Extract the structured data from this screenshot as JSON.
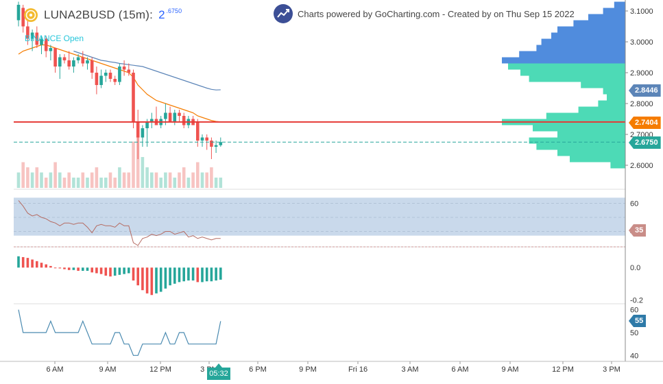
{
  "header": {
    "symbol_label": "LUNA2BUSD (15m):",
    "price_main": "2",
    "price_sup": ".6750",
    "brand_text": "Charts powered by GoCharting.com - Created by  on Thu Sep 15 2022",
    "exchange_note": "BINANCE Open"
  },
  "icons": {
    "coin": "coin-logo-icon",
    "brand": "gocharting-logo-icon"
  },
  "colors": {
    "up": "#26a69a",
    "down": "#ef5350",
    "price_line": "#e53935",
    "ma_fast": "#f57c00",
    "ma_slow": "#5c85b8",
    "vp_up": "#3ad6ae",
    "vp_down": "#3d7fd9",
    "rsi_band": "#c6d7ea",
    "rsi_line": "#b56b62",
    "cci_line": "#4a8ab0"
  },
  "badges": {
    "ma_slow": {
      "text": "2.8446",
      "color": "#5c85b8"
    },
    "ma_fast": {
      "text": "2.7404",
      "color": "#f57c00"
    },
    "last_price": {
      "text": "2.6750",
      "color": "#26a69a"
    },
    "rsi": {
      "text": "35",
      "color": "#c98d88"
    },
    "cci": {
      "text": "55",
      "color": "#2e7aa8"
    },
    "time": {
      "text": "05:32"
    }
  },
  "x_axis": {
    "labels": [
      "6 AM",
      "9 AM",
      "12 PM",
      "3 PM",
      "6 PM",
      "9 PM",
      "Fri 16",
      "3 AM",
      "6 AM",
      "9 AM",
      "12 PM",
      "3 PM"
    ]
  },
  "panes": {
    "price": {
      "ticks": [
        "3.1000",
        "3.0000",
        "2.9000",
        "2.8000",
        "2.7000",
        "2.6000"
      ]
    },
    "rsi": {
      "ticks": [
        "60",
        "40"
      ]
    },
    "macd": {
      "ticks": [
        "0.0",
        "-0.2"
      ]
    },
    "cci": {
      "ticks": [
        "60",
        "50",
        "40"
      ]
    }
  },
  "chart_data": {
    "type": "candlestick",
    "symbol": "LUNA2BUSD",
    "interval": "15m",
    "last_price": 2.675,
    "price_line": 2.7404,
    "ylim": [
      2.58,
      3.13
    ],
    "candles": [
      [
        3.07,
        3.13,
        3.05,
        3.12
      ],
      [
        3.11,
        3.12,
        3.03,
        3.05
      ],
      [
        3.05,
        3.07,
        2.99,
        3.01
      ],
      [
        3.01,
        3.04,
        2.97,
        3.03
      ],
      [
        3.03,
        3.05,
        2.98,
        2.99
      ],
      [
        2.99,
        3.02,
        2.96,
        3.01
      ],
      [
        3.01,
        3.02,
        2.95,
        2.97
      ],
      [
        2.97,
        2.99,
        2.94,
        2.98
      ],
      [
        2.98,
        2.98,
        2.9,
        2.92
      ],
      [
        2.92,
        2.96,
        2.88,
        2.95
      ],
      [
        2.95,
        2.96,
        2.93,
        2.94
      ],
      [
        2.94,
        2.97,
        2.91,
        2.92
      ],
      [
        2.92,
        2.95,
        2.9,
        2.94
      ],
      [
        2.94,
        2.96,
        2.93,
        2.95
      ],
      [
        2.95,
        2.97,
        2.92,
        2.93
      ],
      [
        2.93,
        2.95,
        2.91,
        2.94
      ],
      [
        2.94,
        2.95,
        2.88,
        2.9
      ],
      [
        2.9,
        2.92,
        2.83,
        2.86
      ],
      [
        2.86,
        2.91,
        2.85,
        2.89
      ],
      [
        2.89,
        2.91,
        2.87,
        2.9
      ],
      [
        2.9,
        2.91,
        2.87,
        2.88
      ],
      [
        2.88,
        2.89,
        2.86,
        2.87
      ],
      [
        2.87,
        2.93,
        2.86,
        2.92
      ],
      [
        2.92,
        2.94,
        2.89,
        2.91
      ],
      [
        2.91,
        2.93,
        2.89,
        2.9
      ],
      [
        2.9,
        2.91,
        2.72,
        2.74
      ],
      [
        2.74,
        2.78,
        2.62,
        2.69
      ],
      [
        2.69,
        2.73,
        2.66,
        2.72
      ],
      [
        2.72,
        2.75,
        2.66,
        2.74
      ],
      [
        2.74,
        2.77,
        2.72,
        2.75
      ],
      [
        2.75,
        2.79,
        2.73,
        2.73
      ],
      [
        2.73,
        2.76,
        2.72,
        2.75
      ],
      [
        2.75,
        2.8,
        2.73,
        2.77
      ],
      [
        2.77,
        2.79,
        2.74,
        2.74
      ],
      [
        2.74,
        2.78,
        2.73,
        2.77
      ],
      [
        2.77,
        2.78,
        2.74,
        2.76
      ],
      [
        2.76,
        2.77,
        2.72,
        2.73
      ],
      [
        2.73,
        2.76,
        2.72,
        2.75
      ],
      [
        2.75,
        2.76,
        2.73,
        2.73
      ],
      [
        2.74,
        2.75,
        2.66,
        2.68
      ],
      [
        2.68,
        2.7,
        2.66,
        2.69
      ],
      [
        2.69,
        2.7,
        2.65,
        2.68
      ],
      [
        2.68,
        2.69,
        2.62,
        2.66
      ],
      [
        2.66,
        2.68,
        2.64,
        2.665
      ],
      [
        2.665,
        2.69,
        2.66,
        2.675
      ]
    ],
    "volume": [
      3,
      5,
      4,
      3,
      4,
      3,
      2,
      3,
      5,
      3,
      2,
      3,
      2,
      2,
      3,
      2,
      3,
      4,
      2,
      2,
      3,
      2,
      4,
      3,
      3,
      9,
      10,
      6,
      4,
      3,
      3,
      2,
      3,
      3,
      2,
      3,
      4,
      2,
      3,
      5,
      3,
      3,
      4,
      2,
      2
    ],
    "ma_fast": [
      2.96,
      2.97,
      2.975,
      2.98,
      2.985,
      2.99,
      2.99,
      2.985,
      2.98,
      2.975,
      2.97,
      2.965,
      2.96,
      2.955,
      2.95,
      2.945,
      2.94,
      2.935,
      2.93,
      2.925,
      2.92,
      2.915,
      2.91,
      2.905,
      2.9,
      2.885,
      2.86,
      2.845,
      2.83,
      2.82,
      2.81,
      2.805,
      2.8,
      2.795,
      2.79,
      2.785,
      2.78,
      2.775,
      2.77,
      2.76,
      2.755,
      2.75,
      2.745,
      2.742,
      2.7404
    ],
    "ma_slow_start_index": 12,
    "ma_slow": [
      2.97,
      2.965,
      2.96,
      2.955,
      2.95,
      2.945,
      2.94,
      2.938,
      2.935,
      2.933,
      2.93,
      2.928,
      2.926,
      2.924,
      2.922,
      2.92,
      2.915,
      2.91,
      2.905,
      2.9,
      2.895,
      2.89,
      2.885,
      2.88,
      2.875,
      2.87,
      2.865,
      2.86,
      2.855,
      2.85,
      2.846,
      2.844,
      2.8446
    ],
    "volume_profile": [
      {
        "price": 3.12,
        "up": 0,
        "down": 0.09
      },
      {
        "price": 3.1,
        "up": 0,
        "down": 0.18
      },
      {
        "price": 3.08,
        "up": 0,
        "down": 0.3
      },
      {
        "price": 3.06,
        "up": 0,
        "down": 0.42
      },
      {
        "price": 3.04,
        "up": 0,
        "down": 0.55
      },
      {
        "price": 3.02,
        "up": 0,
        "down": 0.6
      },
      {
        "price": 3.0,
        "up": 0,
        "down": 0.68
      },
      {
        "price": 2.98,
        "up": 0,
        "down": 0.72
      },
      {
        "price": 2.96,
        "up": 0,
        "down": 0.86
      },
      {
        "price": 2.94,
        "up": 0.1,
        "down": 1.0
      },
      {
        "price": 2.92,
        "up": 0.95,
        "down": 0.05
      },
      {
        "price": 2.9,
        "up": 0.85,
        "down": 0
      },
      {
        "price": 2.88,
        "up": 0.78,
        "down": 0
      },
      {
        "price": 2.86,
        "up": 0.36,
        "down": 0
      },
      {
        "price": 2.84,
        "up": 0.18,
        "down": 0
      },
      {
        "price": 2.82,
        "up": 0.15,
        "down": 0
      },
      {
        "price": 2.8,
        "up": 0.22,
        "down": 0
      },
      {
        "price": 2.78,
        "up": 0.38,
        "down": 0
      },
      {
        "price": 2.76,
        "up": 0.64,
        "down": 0
      },
      {
        "price": 2.74,
        "up": 1.0,
        "down": 0
      },
      {
        "price": 2.72,
        "up": 0.75,
        "down": 0
      },
      {
        "price": 2.7,
        "up": 0.55,
        "down": 0
      },
      {
        "price": 2.68,
        "up": 0.78,
        "down": 0
      },
      {
        "price": 2.66,
        "up": 0.72,
        "down": 0
      },
      {
        "price": 2.64,
        "up": 0.55,
        "down": 0
      },
      {
        "price": 2.62,
        "up": 0.45,
        "down": 0
      },
      {
        "price": 2.6,
        "up": 0.12,
        "down": 0
      }
    ],
    "rsi": {
      "ylim": [
        30,
        70
      ],
      "band": [
        37,
        64
      ],
      "values": [
        62,
        58,
        53,
        51,
        52,
        50,
        49,
        47,
        46,
        44,
        46,
        46,
        45,
        46,
        46,
        43,
        39,
        44,
        45,
        44,
        44,
        43,
        46,
        44,
        44,
        32,
        30,
        35,
        36,
        38,
        37,
        38,
        40,
        40,
        38,
        39,
        40,
        36,
        37,
        35,
        36,
        35,
        34,
        35,
        35
      ]
    },
    "macd": {
      "ylim": [
        -0.22,
        0.12
      ],
      "hist": [
        0.07,
        0.065,
        0.06,
        0.05,
        0.04,
        0.03,
        0.02,
        0.01,
        0.0,
        -0.005,
        -0.01,
        -0.015,
        -0.015,
        -0.02,
        -0.02,
        -0.02,
        -0.03,
        -0.035,
        -0.04,
        -0.05,
        -0.055,
        -0.05,
        -0.045,
        -0.04,
        -0.035,
        -0.08,
        -0.11,
        -0.14,
        -0.16,
        -0.17,
        -0.16,
        -0.15,
        -0.13,
        -0.11,
        -0.1,
        -0.09,
        -0.085,
        -0.08,
        -0.08,
        -0.09,
        -0.09,
        -0.085,
        -0.085,
        -0.08,
        -0.075
      ]
    },
    "cci": {
      "ylim": [
        38,
        62
      ],
      "values": [
        60,
        50,
        50,
        50,
        50,
        50,
        50,
        55,
        50,
        50,
        50,
        50,
        50,
        50,
        55,
        50,
        45,
        45,
        45,
        45,
        45,
        50,
        50,
        45,
        45,
        40,
        40,
        45,
        45,
        45,
        45,
        45,
        50,
        45,
        45,
        50,
        50,
        45,
        45,
        45,
        45,
        45,
        45,
        45,
        55
      ]
    }
  }
}
